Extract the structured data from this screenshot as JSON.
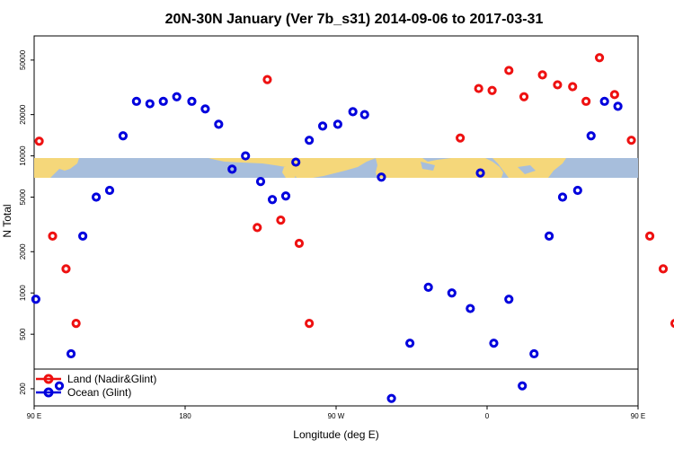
{
  "chart_data": {
    "type": "scatter",
    "title": "20N-30N January (Ver 7b_s31)   2014-09-06 to 2017-03-31",
    "xlabel": "Longitude (deg E)",
    "ylabel": "N Total",
    "x_scale": "linear",
    "y_scale": "log",
    "xlim": [
      90,
      450
    ],
    "ylim": [
      150,
      75000
    ],
    "x_ticks": [
      {
        "value": 90,
        "label": "90 E"
      },
      {
        "value": 180,
        "label": "180"
      },
      {
        "value": 270,
        "label": "90 W"
      },
      {
        "value": 360,
        "label": "0"
      },
      {
        "value": 450,
        "label": "90 E"
      },
      {
        "value": 540,
        "label": "180"
      }
    ],
    "y_ticks": [
      {
        "value": 200,
        "label": "200"
      },
      {
        "value": 500,
        "label": "500"
      },
      {
        "value": 1000,
        "label": "1000"
      },
      {
        "value": 2000,
        "label": "2000"
      },
      {
        "value": 5000,
        "label": "5000"
      },
      {
        "value": 10000,
        "label": "10000"
      },
      {
        "value": 20000,
        "label": "20000"
      },
      {
        "value": 50000,
        "label": "50000"
      }
    ],
    "legend_position": "bottom-left",
    "series": [
      {
        "name": "Land (Nadir&Glint)",
        "color": "#ee1111",
        "points": [
          [
            93,
            12800
          ],
          [
            101,
            2600
          ],
          [
            109,
            1500
          ],
          [
            115,
            600
          ],
          [
            223,
            3000
          ],
          [
            229,
            36000
          ],
          [
            237,
            3400
          ],
          [
            248,
            2300
          ],
          [
            254,
            600
          ],
          [
            344,
            13500
          ],
          [
            355,
            31000
          ],
          [
            363,
            30000
          ],
          [
            373,
            42000
          ],
          [
            382,
            27000
          ],
          [
            393,
            39000
          ],
          [
            402,
            33000
          ],
          [
            411,
            32000
          ],
          [
            419,
            25000
          ],
          [
            427,
            52000
          ],
          [
            436,
            28000
          ],
          [
            446,
            13000
          ],
          [
            457,
            2600
          ],
          [
            465,
            1500
          ],
          [
            472,
            600
          ]
        ]
      },
      {
        "name": "Ocean (Glint)",
        "color": "#0000dd",
        "points": [
          [
            91,
            900
          ],
          [
            105,
            210
          ],
          [
            112,
            360
          ],
          [
            119,
            2600
          ],
          [
            127,
            5000
          ],
          [
            135,
            5600
          ],
          [
            143,
            14000
          ],
          [
            151,
            25000
          ],
          [
            159,
            24000
          ],
          [
            167,
            25000
          ],
          [
            175,
            27000
          ],
          [
            184,
            25000
          ],
          [
            192,
            22000
          ],
          [
            200,
            17000
          ],
          [
            208,
            8000
          ],
          [
            216,
            10000
          ],
          [
            225,
            6500
          ],
          [
            232,
            4800
          ],
          [
            240,
            5100
          ],
          [
            246,
            9000
          ],
          [
            254,
            13000
          ],
          [
            262,
            16500
          ],
          [
            271,
            17000
          ],
          [
            280,
            21000
          ],
          [
            287,
            20000
          ],
          [
            297,
            7000
          ],
          [
            303,
            170
          ],
          [
            314,
            430
          ],
          [
            325,
            1100
          ],
          [
            339,
            1000
          ],
          [
            350,
            770
          ],
          [
            356,
            7500
          ],
          [
            364,
            430
          ],
          [
            373,
            900
          ],
          [
            381,
            210
          ],
          [
            388,
            360
          ],
          [
            397,
            2600
          ],
          [
            405,
            5000
          ],
          [
            414,
            5600
          ],
          [
            422,
            14000
          ],
          [
            430,
            25000
          ],
          [
            438,
            23000
          ]
        ]
      }
    ]
  }
}
